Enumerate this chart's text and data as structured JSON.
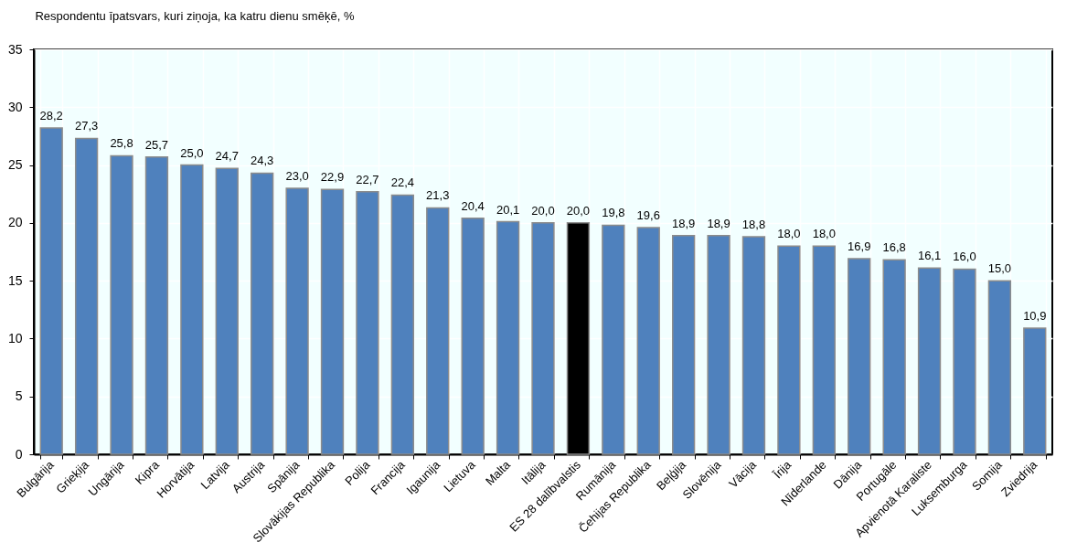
{
  "chart_data": {
    "type": "bar",
    "title": "Respondentu īpatsvars, kuri ziņoja, ka katru dienu smēķē, %",
    "categories": [
      "Bulgārija",
      "Grieķija",
      "Ungārija",
      "Kipra",
      "Horvātija",
      "Latvija",
      "Austrija",
      "Spānija",
      "Slovākijas Republika",
      "Polija",
      "Francija",
      "Igaunija",
      "Lietuva",
      "Malta",
      "Itālija",
      "ES 28 dalībvalstis",
      "Rumānija",
      "Čehijas Republika",
      "Beļģija",
      "Slovēnija",
      "Vācija",
      "Īrija",
      "Nīderlande",
      "Dānija",
      "Portugāle",
      "Apvienotā Karaliste",
      "Luksemburga",
      "Somija",
      "Zviedrija"
    ],
    "values": [
      28.2,
      27.3,
      25.8,
      25.7,
      25.0,
      24.7,
      24.3,
      23.0,
      22.9,
      22.7,
      22.4,
      21.3,
      20.4,
      20.1,
      20.0,
      20.0,
      19.8,
      19.6,
      18.9,
      18.9,
      18.8,
      18.0,
      18.0,
      16.9,
      16.8,
      16.1,
      16.0,
      15.0,
      10.9
    ],
    "value_labels": [
      "28,2",
      "27,3",
      "25,8",
      "25,7",
      "25,0",
      "24,7",
      "24,3",
      "23,0",
      "22,9",
      "22,7",
      "22,4",
      "21,3",
      "20,4",
      "20,1",
      "20,0",
      "20,0",
      "19,8",
      "19,6",
      "18,9",
      "18,9",
      "18,8",
      "18,0",
      "18,0",
      "16,9",
      "16,8",
      "16,1",
      "16,0",
      "15,0",
      "10,9"
    ],
    "colors": [
      "#4f81bd",
      "#4f81bd",
      "#4f81bd",
      "#4f81bd",
      "#4f81bd",
      "#4f81bd",
      "#4f81bd",
      "#4f81bd",
      "#4f81bd",
      "#4f81bd",
      "#4f81bd",
      "#4f81bd",
      "#4f81bd",
      "#4f81bd",
      "#4f81bd",
      "#000000",
      "#4f81bd",
      "#4f81bd",
      "#4f81bd",
      "#4f81bd",
      "#4f81bd",
      "#4f81bd",
      "#4f81bd",
      "#4f81bd",
      "#4f81bd",
      "#4f81bd",
      "#4f81bd",
      "#4f81bd",
      "#4f81bd"
    ],
    "ylim": [
      0,
      35
    ],
    "yticks": [
      0,
      5,
      10,
      15,
      20,
      25,
      30,
      35
    ],
    "grid": true
  }
}
